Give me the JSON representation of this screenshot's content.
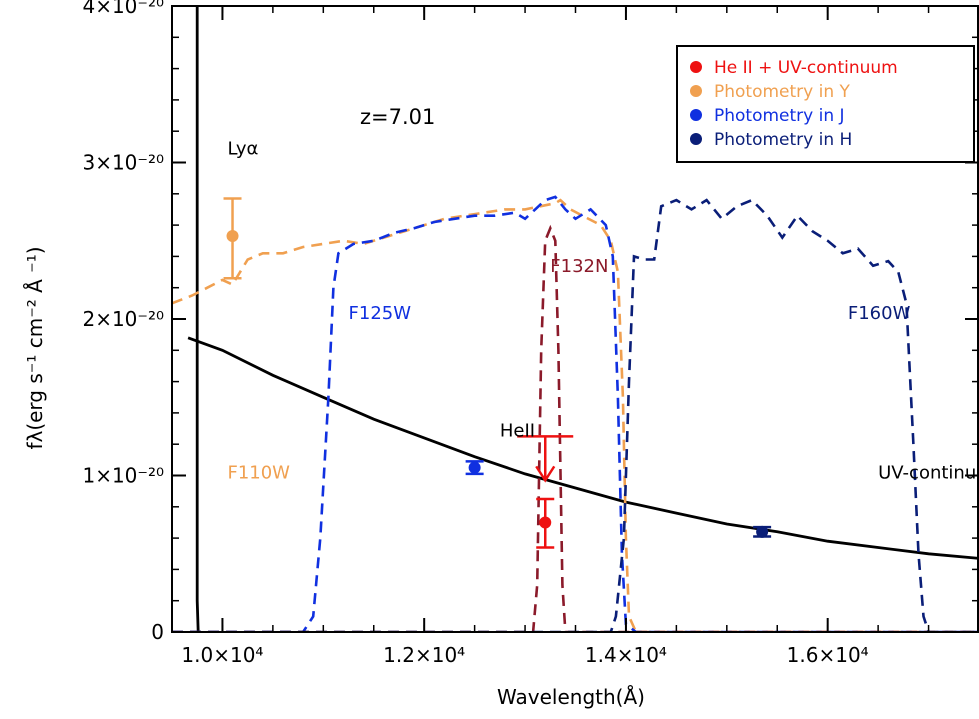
{
  "chart_data": {
    "type": "line",
    "title": "",
    "xlabel": "Wavelength(Å)",
    "ylabel": "fλ(erg s⁻¹ cm⁻² Å ⁻¹)",
    "xlim": [
      9500,
      17500
    ],
    "ylim": [
      0,
      4e-20
    ],
    "x_ticks": [
      {
        "value": 10000,
        "label": "1.0×10⁴"
      },
      {
        "value": 12000,
        "label": "1.2×10⁴"
      },
      {
        "value": 14000,
        "label": "1.4×10⁴"
      },
      {
        "value": 16000,
        "label": "1.6×10⁴"
      }
    ],
    "y_ticks": [
      {
        "value": 0,
        "label": "0"
      },
      {
        "value": 1e-20,
        "label": "1×10⁻²⁰"
      },
      {
        "value": 2e-20,
        "label": "2×10⁻²⁰"
      },
      {
        "value": 3e-20,
        "label": "3×10⁻²⁰"
      },
      {
        "value": 4e-20,
        "label": "4×10⁻²⁰"
      }
    ],
    "redshift_label": "z=7.01",
    "annotations": [
      {
        "text": "Lyα",
        "x": 10050,
        "y": 3.05e-20,
        "color": "#000000"
      },
      {
        "text": "F110W",
        "x": 10050,
        "y": 9.8e-21,
        "color": "#f0a050"
      },
      {
        "text": "F125W",
        "x": 11250,
        "y": 2e-20,
        "color": "#1030e0"
      },
      {
        "text": "F132N",
        "x": 13250,
        "y": 2.3e-20,
        "color": "#8b1a2a"
      },
      {
        "text": "F160W",
        "x": 16200,
        "y": 2e-20,
        "color": "#0a1e78"
      },
      {
        "text": "HeII",
        "x": 12750,
        "y": 1.25e-20,
        "color": "#000000"
      },
      {
        "text": "UV-continuum",
        "x": 16500,
        "y": 9.8e-21,
        "color": "#000000"
      }
    ],
    "legend": {
      "placement": "top-right",
      "entries": [
        {
          "label": "He II + UV-continuum",
          "color": "#ee1111"
        },
        {
          "label": "Photometry in Y",
          "color": "#f0a050"
        },
        {
          "label": "Photometry in J",
          "color": "#1030e0"
        },
        {
          "label": "Photometry in H",
          "color": "#0a1e78"
        }
      ]
    },
    "series": [
      {
        "name": "UV-continuum",
        "style": "solid",
        "color": "#000000",
        "points": [
          [
            9660,
            1.88e-20
          ],
          [
            10000,
            1.8e-20
          ],
          [
            10500,
            1.64e-20
          ],
          [
            11000,
            1.5e-20
          ],
          [
            11500,
            1.36e-20
          ],
          [
            12000,
            1.24e-20
          ],
          [
            12500,
            1.12e-20
          ],
          [
            13000,
            1.01e-20
          ],
          [
            13500,
            9.2e-21
          ],
          [
            14000,
            8.3e-21
          ],
          [
            14500,
            7.6e-21
          ],
          [
            15000,
            6.9e-21
          ],
          [
            15500,
            6.4e-21
          ],
          [
            16000,
            5.8e-21
          ],
          [
            16500,
            5.4e-21
          ],
          [
            17000,
            5e-21
          ],
          [
            17500,
            4.7e-21
          ]
        ]
      },
      {
        "name": "Lyα break",
        "style": "solid",
        "color": "#000000",
        "points": [
          [
            9750,
            4e-20
          ],
          [
            9750,
            2e-21
          ],
          [
            9760,
            0
          ]
        ]
      },
      {
        "name": "F110W",
        "style": "dashed",
        "color": "#f0a050",
        "points": [
          [
            9500,
            2.1e-20
          ],
          [
            9700,
            2.15e-20
          ],
          [
            9850,
            2.2e-20
          ],
          [
            10000,
            2.25e-20
          ],
          [
            10100,
            2.22e-20
          ],
          [
            10250,
            2.38e-20
          ],
          [
            10400,
            2.42e-20
          ],
          [
            10600,
            2.42e-20
          ],
          [
            10800,
            2.46e-20
          ],
          [
            11000,
            2.48e-20
          ],
          [
            11200,
            2.5e-20
          ],
          [
            11400,
            2.48e-20
          ],
          [
            11600,
            2.52e-20
          ],
          [
            11800,
            2.56e-20
          ],
          [
            12000,
            2.6e-20
          ],
          [
            12200,
            2.64e-20
          ],
          [
            12400,
            2.66e-20
          ],
          [
            12600,
            2.68e-20
          ],
          [
            12800,
            2.7e-20
          ],
          [
            13000,
            2.7e-20
          ],
          [
            13150,
            2.72e-20
          ],
          [
            13300,
            2.74e-20
          ],
          [
            13350,
            2.76e-20
          ],
          [
            13450,
            2.7e-20
          ],
          [
            13600,
            2.65e-20
          ],
          [
            13750,
            2.6e-20
          ],
          [
            13850,
            2.5e-20
          ],
          [
            13920,
            2.3e-20
          ],
          [
            13970,
            1.5e-20
          ],
          [
            14000,
            6e-21
          ],
          [
            14030,
            1e-21
          ],
          [
            14100,
            0
          ],
          [
            17500,
            0
          ]
        ]
      },
      {
        "name": "F125W",
        "style": "dashed",
        "color": "#1030e0",
        "points": [
          [
            9500,
            0
          ],
          [
            10800,
            0
          ],
          [
            10900,
            1e-21
          ],
          [
            10970,
            6e-21
          ],
          [
            11050,
            1.5e-20
          ],
          [
            11100,
            2.2e-20
          ],
          [
            11150,
            2.42e-20
          ],
          [
            11300,
            2.48e-20
          ],
          [
            11500,
            2.5e-20
          ],
          [
            11700,
            2.55e-20
          ],
          [
            11900,
            2.58e-20
          ],
          [
            12100,
            2.62e-20
          ],
          [
            12300,
            2.64e-20
          ],
          [
            12500,
            2.66e-20
          ],
          [
            12700,
            2.66e-20
          ],
          [
            12900,
            2.68e-20
          ],
          [
            13000,
            2.64e-20
          ],
          [
            13100,
            2.7e-20
          ],
          [
            13200,
            2.76e-20
          ],
          [
            13300,
            2.78e-20
          ],
          [
            13400,
            2.7e-20
          ],
          [
            13500,
            2.64e-20
          ],
          [
            13650,
            2.7e-20
          ],
          [
            13800,
            2.6e-20
          ],
          [
            13870,
            2.4e-20
          ],
          [
            13920,
            1.5e-20
          ],
          [
            13960,
            5e-21
          ],
          [
            14000,
            5e-22
          ],
          [
            14100,
            0
          ],
          [
            17500,
            0
          ]
        ]
      },
      {
        "name": "F132N",
        "style": "dashed",
        "color": "#8b1a2a",
        "points": [
          [
            9500,
            0
          ],
          [
            13080,
            0
          ],
          [
            13120,
            3e-21
          ],
          [
            13160,
            1.8e-20
          ],
          [
            13200,
            2.5e-20
          ],
          [
            13250,
            2.58e-20
          ],
          [
            13300,
            2.5e-20
          ],
          [
            13330,
            1.8e-20
          ],
          [
            13370,
            3e-21
          ],
          [
            13400,
            0
          ],
          [
            17500,
            0
          ]
        ]
      },
      {
        "name": "F160W",
        "style": "dashed",
        "color": "#0a1e78",
        "points": [
          [
            9500,
            0
          ],
          [
            13850,
            0
          ],
          [
            13900,
            1e-21
          ],
          [
            13980,
            6e-21
          ],
          [
            14030,
            1.6e-20
          ],
          [
            14080,
            2.4e-20
          ],
          [
            14180,
            2.38e-20
          ],
          [
            14280,
            2.38e-20
          ],
          [
            14350,
            2.72e-20
          ],
          [
            14500,
            2.76e-20
          ],
          [
            14650,
            2.7e-20
          ],
          [
            14800,
            2.76e-20
          ],
          [
            14950,
            2.64e-20
          ],
          [
            15100,
            2.72e-20
          ],
          [
            15250,
            2.76e-20
          ],
          [
            15400,
            2.66e-20
          ],
          [
            15550,
            2.52e-20
          ],
          [
            15700,
            2.66e-20
          ],
          [
            15850,
            2.56e-20
          ],
          [
            16000,
            2.5e-20
          ],
          [
            16150,
            2.42e-20
          ],
          [
            16300,
            2.45e-20
          ],
          [
            16450,
            2.34e-20
          ],
          [
            16600,
            2.37e-20
          ],
          [
            16700,
            2.3e-20
          ],
          [
            16780,
            2.1e-20
          ],
          [
            16850,
            1.2e-20
          ],
          [
            16900,
            5e-21
          ],
          [
            16950,
            1e-21
          ],
          [
            17000,
            0
          ],
          [
            17500,
            0
          ]
        ]
      }
    ],
    "points": [
      {
        "name": "Photometry in Y",
        "x": 10100,
        "y": 2.53e-20,
        "err_low": 2.7e-21,
        "err_high": 2.4e-21,
        "color": "#f0a050"
      },
      {
        "name": "Photometry in J",
        "x": 12500,
        "y": 1.05e-20,
        "err_low": 4e-22,
        "err_high": 4e-22,
        "color": "#1030e0"
      },
      {
        "name": "He II + UV-continuum",
        "x": 13200,
        "y": 7e-21,
        "err_low": 1.6e-21,
        "err_high": 1.5e-21,
        "color": "#ee1111"
      },
      {
        "name": "Photometry in H",
        "x": 15350,
        "y": 6.4e-21,
        "err_low": 3e-22,
        "err_high": 3e-22,
        "color": "#0a1e78"
      }
    ],
    "upper_limits": [
      {
        "name": "HeII",
        "x": 13200,
        "y": 1.25e-20,
        "color": "#ee1111"
      }
    ]
  }
}
